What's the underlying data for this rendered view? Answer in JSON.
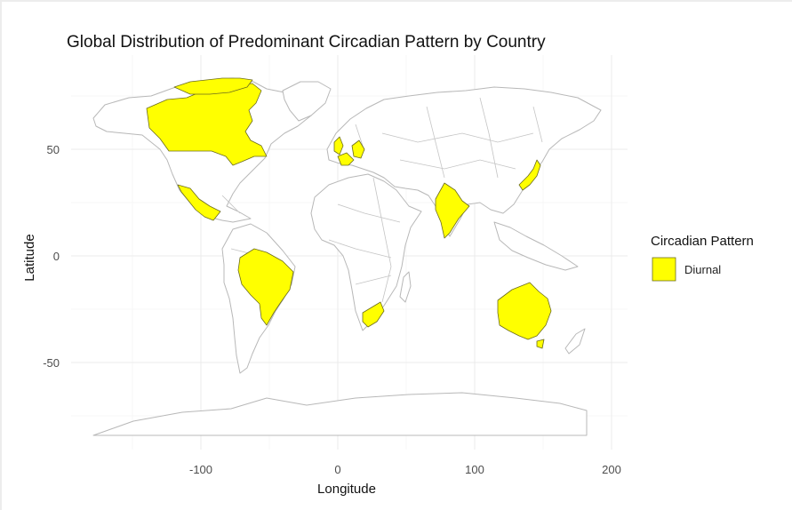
{
  "chart_data": {
    "type": "map",
    "title": "Global Distribution of Predominant Circadian Pattern by Country",
    "xlabel": "Longitude",
    "ylabel": "Latitude",
    "x_ticks": [
      -100,
      0,
      100,
      200
    ],
    "y_ticks": [
      50,
      0,
      -50
    ],
    "xlim": [
      -180,
      200
    ],
    "ylim": [
      -85,
      92
    ],
    "grid": true,
    "legend": {
      "title": "Circadian Pattern",
      "placement": "right",
      "entries": [
        {
          "label": "Diurnal",
          "color": "#ffff00"
        }
      ]
    },
    "highlighted_countries": [
      {
        "name": "Canada",
        "pattern": "Diurnal"
      },
      {
        "name": "United States",
        "pattern": "Diurnal"
      },
      {
        "name": "Mexico",
        "pattern": "Diurnal"
      },
      {
        "name": "Brazil",
        "pattern": "Diurnal"
      },
      {
        "name": "United Kingdom",
        "pattern": "Diurnal"
      },
      {
        "name": "France",
        "pattern": "Diurnal"
      },
      {
        "name": "Germany",
        "pattern": "Diurnal"
      },
      {
        "name": "India",
        "pattern": "Diurnal"
      },
      {
        "name": "Japan",
        "pattern": "Diurnal"
      },
      {
        "name": "South Africa",
        "pattern": "Diurnal"
      },
      {
        "name": "Australia",
        "pattern": "Diurnal"
      }
    ],
    "colors": {
      "fill": "#ffff00",
      "land": "#ffffff",
      "outline": "#b8b8b8"
    }
  }
}
